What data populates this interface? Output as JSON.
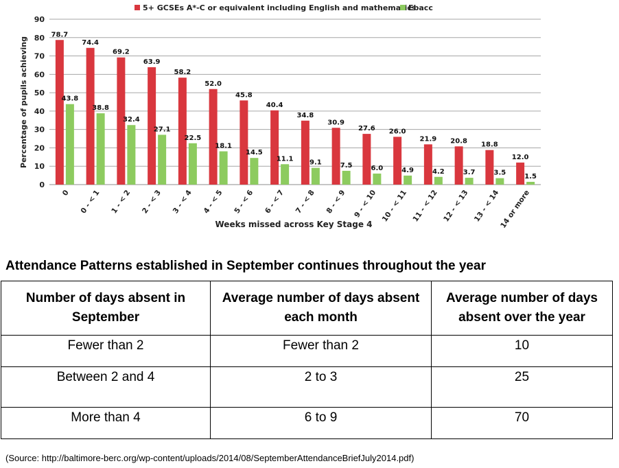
{
  "chart_data": {
    "type": "bar",
    "title": "",
    "xlabel": "Weeks missed across Key Stage 4",
    "ylabel": "Percentage of pupils achieving",
    "ylim": [
      0,
      90
    ],
    "yticks": [
      0,
      10,
      20,
      30,
      40,
      50,
      60,
      70,
      80,
      90
    ],
    "grid": true,
    "legend_position": "top",
    "categories": [
      "0",
      "0 - < 1",
      "1 - < 2",
      "2 - < 3",
      "3 - < 4",
      "4 - < 5",
      "5 - < 6",
      "6 - < 7",
      "7 - < 8",
      "8 - < 9",
      "9 - < 10",
      "10 - < 11",
      "11 - < 12",
      "12 - < 13",
      "13 - < 14",
      "14 or more"
    ],
    "series": [
      {
        "name": "5+ GCSEs A*-C or equivalent including English and mathematics",
        "color": "#d9373e",
        "values": [
          78.7,
          74.4,
          69.2,
          63.9,
          58.2,
          52.0,
          45.8,
          40.4,
          34.8,
          30.9,
          27.6,
          26.0,
          21.9,
          20.8,
          18.8,
          12.0
        ],
        "labels": [
          "78.7",
          "74.4",
          "69.2",
          "63.9",
          "58.2",
          "52.0",
          "45.8",
          "40.4",
          "34.8",
          "30.9",
          "27.6",
          "26.0",
          "21.9",
          "20.8",
          "18.8",
          "12.0"
        ]
      },
      {
        "name": "Ebacc",
        "color": "#8dcb5f",
        "values": [
          43.8,
          38.8,
          32.4,
          27.1,
          22.5,
          18.1,
          14.5,
          11.1,
          9.1,
          7.5,
          6.0,
          4.9,
          4.2,
          3.7,
          3.5,
          1.5
        ],
        "labels": [
          "43.8",
          "38.8",
          "32.4",
          "27.1",
          "22.5",
          "18.1",
          "14.5",
          "11.1",
          "9.1",
          "7.5",
          "6.0",
          "4.9",
          "4.2",
          "3.7",
          "3.5",
          "1.5"
        ]
      }
    ]
  },
  "heading": "Attendance Patterns established in September continues throughout the year",
  "table": {
    "headers": [
      "Number of days absent in September",
      "Average number of days absent each month",
      "Average number of days absent over the year"
    ],
    "rows": [
      [
        "Fewer than 2",
        "Fewer than 2",
        "10"
      ],
      [
        "Between 2 and 4",
        "2 to 3",
        "25"
      ],
      [
        "More than 4",
        "6 to 9",
        "70"
      ]
    ]
  },
  "source": "(Source: http://baltimore-berc.org/wp-content/uploads/2014/08/SeptemberAttendanceBriefJuly2014.pdf)"
}
